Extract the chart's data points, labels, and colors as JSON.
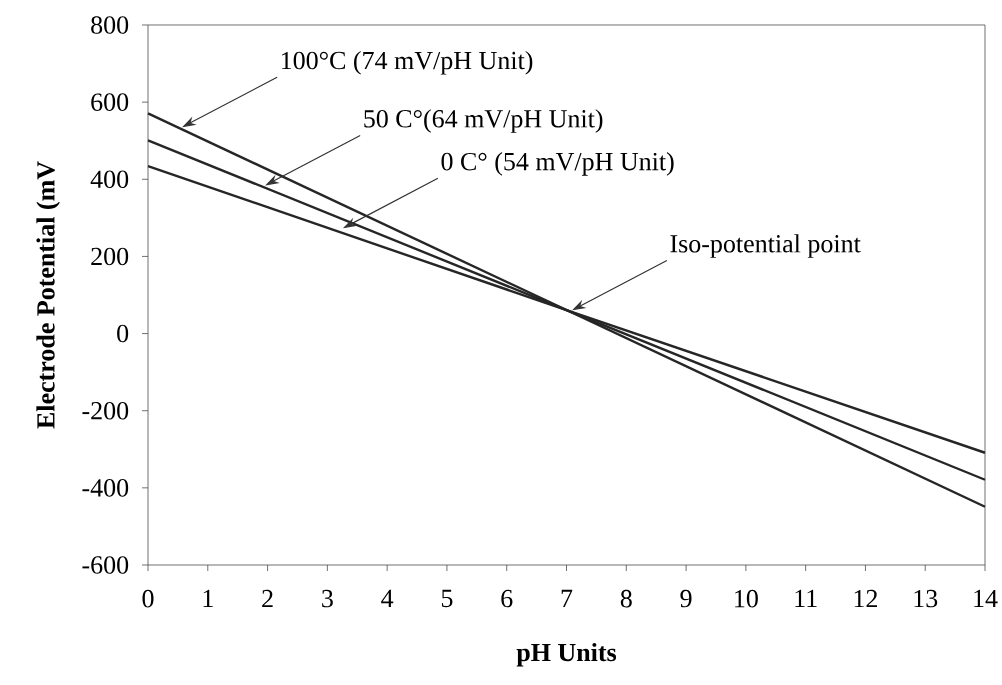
{
  "chart_data": {
    "type": "line",
    "xlabel": "pH Units",
    "ylabel": "Electrode Potential (mV",
    "x": [
      0,
      7,
      14
    ],
    "series": [
      {
        "color": "#262626",
        "values": [
          571,
          61,
          -449
        ]
      },
      {
        "color": "#262626",
        "values": [
          501,
          61,
          -379
        ]
      },
      {
        "color": "#262626",
        "values": [
          434,
          61,
          -309
        ]
      }
    ],
    "xlim": [
      0,
      14
    ],
    "ylim": [
      -600,
      800
    ],
    "xticks": [
      0,
      1,
      2,
      3,
      4,
      5,
      6,
      7,
      8,
      9,
      10,
      11,
      12,
      13,
      14
    ],
    "yticks": [
      -600,
      -400,
      -200,
      0,
      200,
      400,
      600,
      800
    ],
    "annotations": [
      {
        "text": "100°C (74 mV/pH Unit)",
        "x": 0.57,
        "y": 535
      },
      {
        "text": "50 C°(64 mV/pH Unit)",
        "x": 1.96,
        "y": 384
      },
      {
        "text": "0 C° (54 mV/pH Unit)",
        "x": 3.26,
        "y": 273
      },
      {
        "text": "Iso-potential point",
        "x": 7.09,
        "y": 60
      }
    ]
  }
}
